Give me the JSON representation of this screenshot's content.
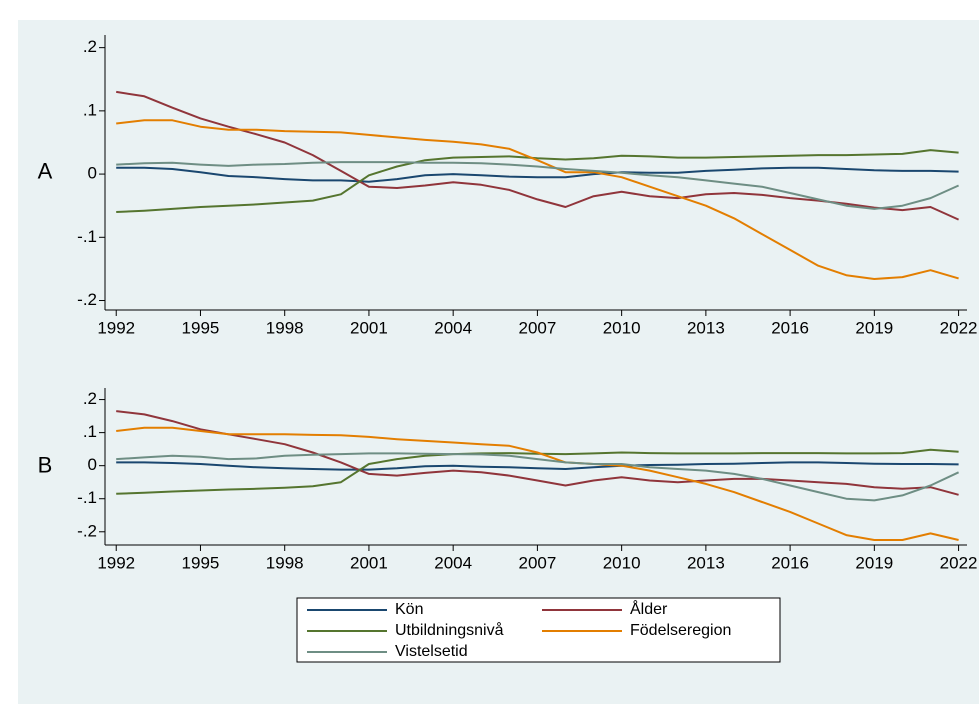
{
  "chart_data": [
    {
      "type": "line",
      "ylabel": "A",
      "x": [
        1992,
        1993,
        1994,
        1995,
        1996,
        1997,
        1998,
        1999,
        2000,
        2001,
        2002,
        2003,
        2004,
        2005,
        2006,
        2007,
        2008,
        2009,
        2010,
        2011,
        2012,
        2013,
        2014,
        2015,
        2016,
        2017,
        2018,
        2019,
        2020,
        2021,
        2022
      ],
      "xlim": [
        1991.6,
        2022.3
      ],
      "xticks": [
        1992,
        1995,
        1998,
        2001,
        2004,
        2007,
        2010,
        2013,
        2016,
        2019,
        2022
      ],
      "ylim": [
        -0.215,
        0.22
      ],
      "yticks": [
        {
          "value": 0.2,
          "label": ".2"
        },
        {
          "value": 0.1,
          "label": ".1"
        },
        0,
        {
          "value": -0.1,
          "label": "-.1"
        },
        {
          "value": -0.2,
          "label": "-.2"
        }
      ],
      "grid": false,
      "series": [
        {
          "name": "Kön",
          "color": "#1a476f",
          "values": [
            0.01,
            0.01,
            0.008,
            0.003,
            -0.003,
            -0.005,
            -0.008,
            -0.01,
            -0.01,
            -0.012,
            -0.008,
            -0.002,
            0,
            -0.002,
            -0.004,
            -0.005,
            -0.005,
            0,
            0.003,
            0.002,
            0.002,
            0.005,
            0.007,
            0.009,
            0.01,
            0.01,
            0.008,
            0.006,
            0.005,
            0.005,
            0.004
          ]
        },
        {
          "name": "Ålder",
          "color": "#90353b",
          "values": [
            0.13,
            0.123,
            0.105,
            0.088,
            0.075,
            0.063,
            0.05,
            0.03,
            0.005,
            -0.02,
            -0.022,
            -0.018,
            -0.013,
            -0.017,
            -0.025,
            -0.04,
            -0.052,
            -0.035,
            -0.028,
            -0.035,
            -0.038,
            -0.032,
            -0.03,
            -0.033,
            -0.038,
            -0.042,
            -0.047,
            -0.053,
            -0.057,
            -0.052,
            -0.072
          ]
        },
        {
          "name": "Utbildningsnivå",
          "color": "#55752f",
          "values": [
            -0.06,
            -0.058,
            -0.055,
            -0.052,
            -0.05,
            -0.048,
            -0.045,
            -0.042,
            -0.032,
            -0.002,
            0.012,
            0.022,
            0.026,
            0.027,
            0.028,
            0.025,
            0.023,
            0.025,
            0.029,
            0.028,
            0.026,
            0.026,
            0.027,
            0.028,
            0.029,
            0.03,
            0.03,
            0.031,
            0.032,
            0.038,
            0.034
          ]
        },
        {
          "name": "Födelseregion",
          "color": "#e37e00",
          "values": [
            0.08,
            0.085,
            0.085,
            0.075,
            0.07,
            0.07,
            0.068,
            0.067,
            0.066,
            0.062,
            0.058,
            0.054,
            0.051,
            0.047,
            0.04,
            0.022,
            0.003,
            0.003,
            -0.005,
            -0.02,
            -0.035,
            -0.05,
            -0.07,
            -0.095,
            -0.12,
            -0.145,
            -0.16,
            -0.166,
            -0.163,
            -0.152,
            -0.165
          ]
        },
        {
          "name": "Vistelsetid",
          "color": "#6e8e84",
          "values": [
            0.015,
            0.017,
            0.018,
            0.015,
            0.013,
            0.015,
            0.016,
            0.018,
            0.019,
            0.019,
            0.019,
            0.018,
            0.018,
            0.017,
            0.015,
            0.012,
            0.008,
            0.005,
            0.002,
            -0.002,
            -0.005,
            -0.01,
            -0.015,
            -0.02,
            -0.03,
            -0.04,
            -0.05,
            -0.055,
            -0.05,
            -0.038,
            -0.018
          ]
        }
      ]
    },
    {
      "type": "line",
      "ylabel": "B",
      "x": [
        1992,
        1993,
        1994,
        1995,
        1996,
        1997,
        1998,
        1999,
        2000,
        2001,
        2002,
        2003,
        2004,
        2005,
        2006,
        2007,
        2008,
        2009,
        2010,
        2011,
        2012,
        2013,
        2014,
        2015,
        2016,
        2017,
        2018,
        2019,
        2020,
        2021,
        2022
      ],
      "xlim": [
        1991.6,
        2022.3
      ],
      "xticks": [
        1992,
        1995,
        1998,
        2001,
        2004,
        2007,
        2010,
        2013,
        2016,
        2019,
        2022
      ],
      "ylim": [
        -0.24,
        0.235
      ],
      "yticks": [
        {
          "value": 0.2,
          "label": ".2"
        },
        {
          "value": 0.1,
          "label": ".1"
        },
        0,
        {
          "value": -0.1,
          "label": "-.1"
        },
        {
          "value": -0.2,
          "label": "-.2"
        }
      ],
      "grid": false,
      "series": [
        {
          "name": "Kön",
          "color": "#1a476f",
          "values": [
            0.01,
            0.01,
            0.008,
            0.005,
            0,
            -0.005,
            -0.008,
            -0.01,
            -0.012,
            -0.012,
            -0.008,
            -0.002,
            0,
            -0.003,
            -0.005,
            -0.008,
            -0.01,
            -0.005,
            0,
            0.002,
            0.003,
            0.005,
            0.006,
            0.008,
            0.01,
            0.01,
            0.008,
            0.006,
            0.005,
            0.005,
            0.004
          ]
        },
        {
          "name": "Ålder",
          "color": "#90353b",
          "values": [
            0.165,
            0.155,
            0.135,
            0.11,
            0.095,
            0.08,
            0.065,
            0.04,
            0.01,
            -0.025,
            -0.03,
            -0.022,
            -0.015,
            -0.02,
            -0.03,
            -0.045,
            -0.06,
            -0.045,
            -0.035,
            -0.045,
            -0.05,
            -0.045,
            -0.04,
            -0.04,
            -0.045,
            -0.05,
            -0.055,
            -0.065,
            -0.07,
            -0.065,
            -0.088
          ]
        },
        {
          "name": "Utbildningsnivå",
          "color": "#55752f",
          "values": [
            -0.085,
            -0.082,
            -0.078,
            -0.075,
            -0.072,
            -0.07,
            -0.067,
            -0.062,
            -0.05,
            0.005,
            0.02,
            0.03,
            0.035,
            0.037,
            0.038,
            0.036,
            0.035,
            0.037,
            0.04,
            0.038,
            0.037,
            0.037,
            0.037,
            0.038,
            0.038,
            0.038,
            0.037,
            0.037,
            0.038,
            0.048,
            0.042
          ]
        },
        {
          "name": "Födelseregion",
          "color": "#e37e00",
          "values": [
            0.105,
            0.115,
            0.115,
            0.105,
            0.095,
            0.095,
            0.095,
            0.093,
            0.092,
            0.087,
            0.08,
            0.075,
            0.07,
            0.065,
            0.06,
            0.04,
            0.01,
            0.005,
            0,
            -0.015,
            -0.035,
            -0.055,
            -0.08,
            -0.11,
            -0.14,
            -0.175,
            -0.21,
            -0.225,
            -0.225,
            -0.205,
            -0.225
          ]
        },
        {
          "name": "Vistelsetid",
          "color": "#6e8e84",
          "values": [
            0.02,
            0.025,
            0.03,
            0.027,
            0.02,
            0.022,
            0.03,
            0.033,
            0.035,
            0.037,
            0.037,
            0.036,
            0.035,
            0.034,
            0.03,
            0.02,
            0.01,
            0.005,
            0.005,
            -0.005,
            -0.01,
            -0.015,
            -0.025,
            -0.04,
            -0.06,
            -0.08,
            -0.1,
            -0.105,
            -0.09,
            -0.06,
            -0.02
          ]
        }
      ]
    }
  ]
}
